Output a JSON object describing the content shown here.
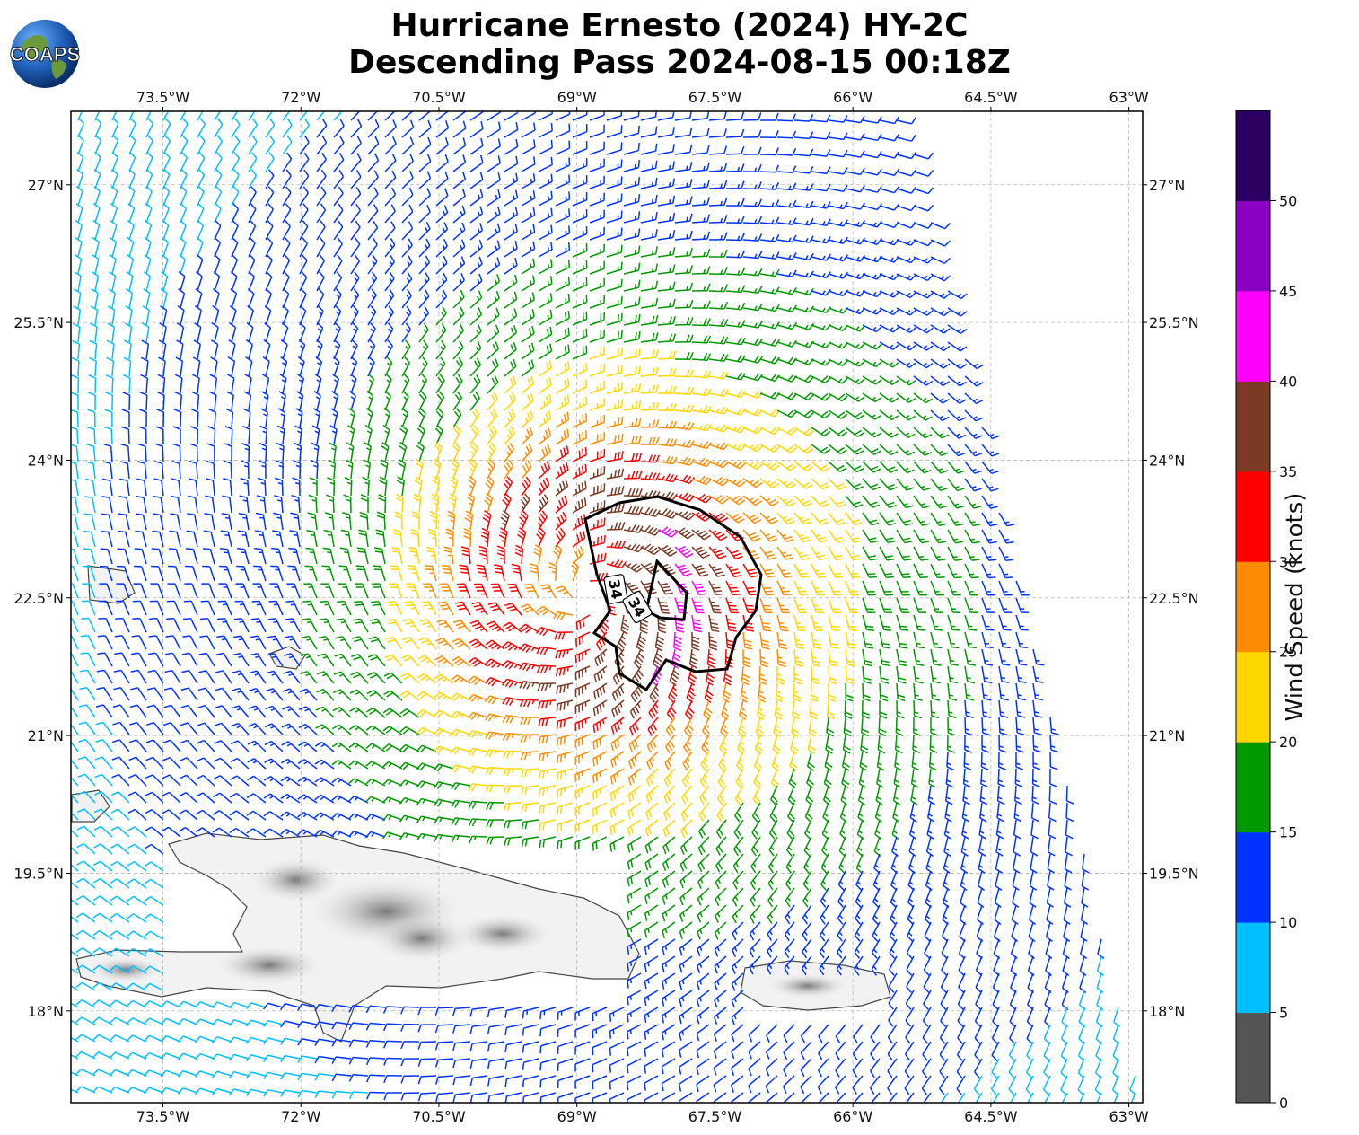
{
  "title": {
    "line1": "Hurricane Ernesto (2024) HY-2C",
    "line2": "Descending Pass 2024-08-15 00:18Z"
  },
  "logo": {
    "text": "COAPS",
    "icon": "globe-logo-icon"
  },
  "axes": {
    "lon_ticks": [
      "73.5°W",
      "72°W",
      "70.5°W",
      "69°W",
      "67.5°W",
      "66°W",
      "64.5°W",
      "63°W"
    ],
    "lon_values": [
      -73.5,
      -72,
      -70.5,
      -69,
      -67.5,
      -66,
      -64.5,
      -63
    ],
    "lat_ticks": [
      "27°N",
      "25.5°N",
      "24°N",
      "22.5°N",
      "21°N",
      "19.5°N",
      "18°N"
    ],
    "lat_values": [
      27,
      25.5,
      24,
      22.5,
      21,
      19.5,
      18
    ],
    "lon_range": [
      -74.5,
      -62.85
    ],
    "lat_range": [
      17,
      27.8
    ],
    "grid": true
  },
  "colorbar": {
    "label": "Wind Speed (knots)",
    "ticks": [
      "0",
      "5",
      "10",
      "15",
      "20",
      "25",
      "30",
      "35",
      "40",
      "45",
      "50"
    ],
    "bins": [
      {
        "min": 0,
        "max": 5,
        "color": "#555555"
      },
      {
        "min": 5,
        "max": 10,
        "color": "#00bfff"
      },
      {
        "min": 10,
        "max": 15,
        "color": "#0033ff"
      },
      {
        "min": 15,
        "max": 20,
        "color": "#009900"
      },
      {
        "min": 20,
        "max": 25,
        "color": "#ffd700"
      },
      {
        "min": 25,
        "max": 30,
        "color": "#ff8c00"
      },
      {
        "min": 30,
        "max": 35,
        "color": "#ff0000"
      },
      {
        "min": 35,
        "max": 40,
        "color": "#7b3a23"
      },
      {
        "min": 40,
        "max": 45,
        "color": "#ff00ff"
      },
      {
        "min": 45,
        "max": 50,
        "color": "#8a00c4"
      },
      {
        "min": 50,
        "max": 55,
        "color": "#2b0063"
      }
    ]
  },
  "storm": {
    "center_lon": -68.9,
    "center_lat": 22.55,
    "contour_label": "34",
    "contour_color": "#000000"
  },
  "land_labels": []
}
